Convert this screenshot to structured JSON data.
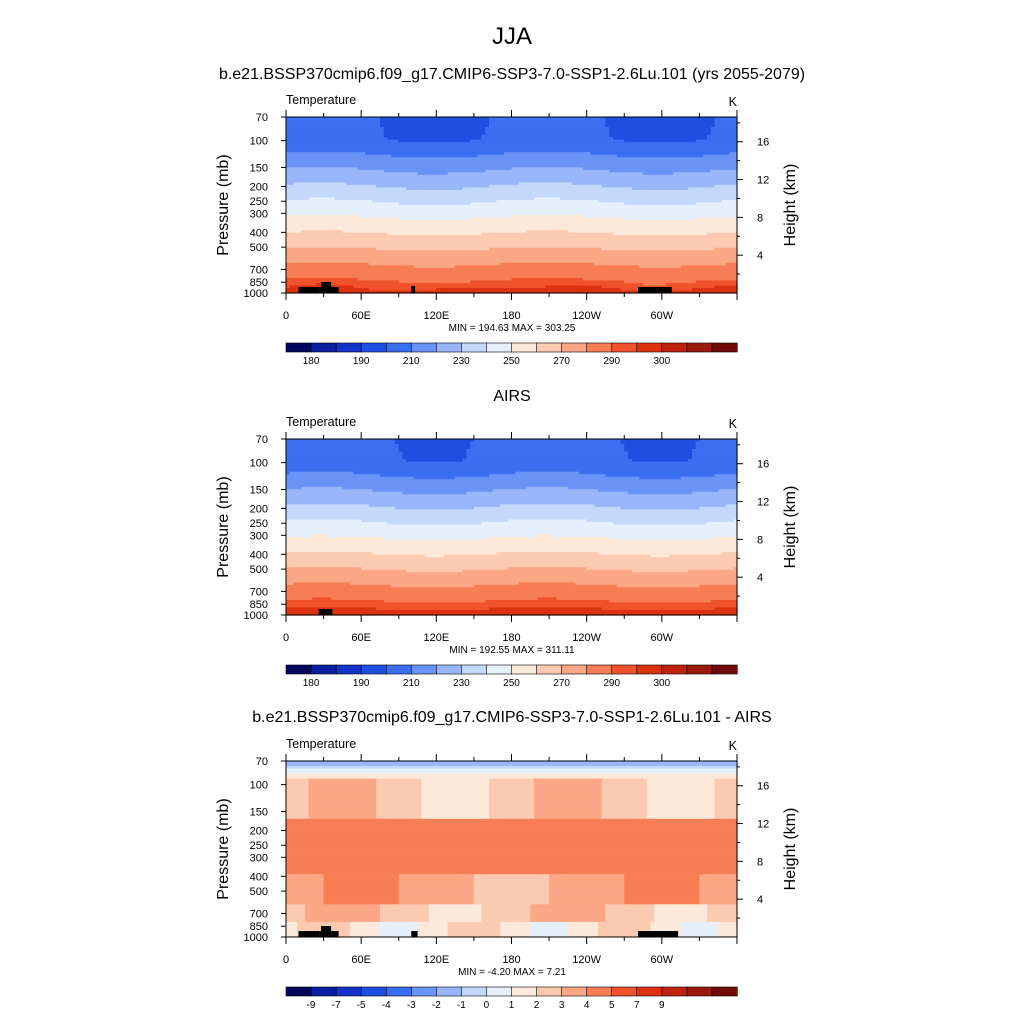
{
  "figure": {
    "title": "JJA"
  },
  "colors": {
    "levels": [
      "#04075e",
      "#0a1fa0",
      "#1233c9",
      "#1f4fe0",
      "#3b6ef0",
      "#6a93f7",
      "#9ab6fa",
      "#c4d8fc",
      "#e6f0fd",
      "#fde9d9",
      "#fccab0",
      "#fba786",
      "#f77d55",
      "#f0522c",
      "#dd3210",
      "#bf230e",
      "#9c1a0d",
      "#700b08"
    ],
    "land_mask": "#000000"
  },
  "chart_data": [
    {
      "type": "heatmap",
      "title": "b.e21.BSSP370cmip6.f09_g17.CMIP6-SSP3-7.0-SSP1-2.6Lu.101 (yrs 2055-2079)",
      "variable_label": "Temperature",
      "units": "K",
      "ylabel": "Pressure (mb)",
      "ylabel_right": "Height (km)",
      "y_ticks": [
        "70",
        "100",
        "150",
        "200",
        "250",
        "300",
        "400",
        "500",
        "700",
        "850",
        "1000"
      ],
      "y_tick_values": [
        70,
        100,
        150,
        200,
        250,
        300,
        400,
        500,
        700,
        850,
        1000
      ],
      "height_ticks": [
        "4",
        "8",
        "12",
        "16"
      ],
      "height_tick_values": [
        4,
        8,
        12,
        16
      ],
      "x_ticks": [
        "0",
        "60E",
        "120E",
        "180",
        "120W",
        "60W"
      ],
      "x_tick_values": [
        0,
        60,
        120,
        180,
        240,
        300
      ],
      "xlim": [
        0,
        360
      ],
      "ylim": [
        70,
        1000
      ],
      "min": "194.63",
      "max": "303.25",
      "minmax_label": "MIN = 194.63  MAX = 303.25",
      "colorbar_labels": [
        "180",
        "190",
        "210",
        "230",
        "250",
        "270",
        "290",
        "300"
      ],
      "colorbar_label_edges": [
        1,
        3,
        5,
        7,
        9,
        11,
        13,
        15
      ],
      "pattern": "temperature",
      "land": [
        [
          10,
          27
        ],
        [
          27,
          33
        ],
        [
          33,
          42
        ],
        [
          100,
          103
        ],
        [
          281,
          308
        ]
      ]
    },
    {
      "type": "heatmap",
      "title": "AIRS",
      "variable_label": "Temperature",
      "units": "K",
      "ylabel": "Pressure (mb)",
      "ylabel_right": "Height (km)",
      "y_ticks": [
        "70",
        "100",
        "150",
        "200",
        "250",
        "300",
        "400",
        "500",
        "700",
        "850",
        "1000"
      ],
      "y_tick_values": [
        70,
        100,
        150,
        200,
        250,
        300,
        400,
        500,
        700,
        850,
        1000
      ],
      "height_ticks": [
        "4",
        "8",
        "12",
        "16"
      ],
      "height_tick_values": [
        4,
        8,
        12,
        16
      ],
      "x_ticks": [
        "0",
        "60E",
        "120E",
        "180",
        "120W",
        "60W"
      ],
      "x_tick_values": [
        0,
        60,
        120,
        180,
        240,
        300
      ],
      "xlim": [
        0,
        360
      ],
      "ylim": [
        70,
        1000
      ],
      "min": "192.55",
      "max": "311.11",
      "minmax_label": "MIN = 192.55  MAX = 311.11",
      "colorbar_labels": [
        "180",
        "190",
        "210",
        "230",
        "250",
        "270",
        "290",
        "300"
      ],
      "colorbar_label_edges": [
        1,
        3,
        5,
        7,
        9,
        11,
        13,
        15
      ],
      "pattern": "temperature_obs",
      "land": [
        [
          26,
          37
        ]
      ]
    },
    {
      "type": "heatmap",
      "title": "b.e21.BSSP370cmip6.f09_g17.CMIP6-SSP3-7.0-SSP1-2.6Lu.101 - AIRS",
      "variable_label": "Temperature",
      "units": "K",
      "ylabel": "Pressure (mb)",
      "ylabel_right": "Height (km)",
      "y_ticks": [
        "70",
        "100",
        "150",
        "200",
        "250",
        "300",
        "400",
        "500",
        "700",
        "850",
        "1000"
      ],
      "y_tick_values": [
        70,
        100,
        150,
        200,
        250,
        300,
        400,
        500,
        700,
        850,
        1000
      ],
      "height_ticks": [
        "4",
        "8",
        "12",
        "16"
      ],
      "height_tick_values": [
        4,
        8,
        12,
        16
      ],
      "x_ticks": [
        "0",
        "60E",
        "120E",
        "180",
        "120W",
        "60W"
      ],
      "x_tick_values": [
        0,
        60,
        120,
        180,
        240,
        300
      ],
      "xlim": [
        0,
        360
      ],
      "ylim": [
        70,
        1000
      ],
      "min": "-4.20",
      "max": "7.21",
      "minmax_label": "MIN =  -4.20  MAX =   7.21",
      "colorbar_labels": [
        "-9",
        "-7",
        "-5",
        "-4",
        "-3",
        "-2",
        "-1",
        "0",
        "1",
        "2",
        "3",
        "4",
        "5",
        "7",
        "9"
      ],
      "colorbar_label_edges": [
        1,
        2,
        3,
        4,
        5,
        6,
        7,
        8,
        9,
        10,
        11,
        12,
        13,
        14,
        15
      ],
      "pattern": "difference",
      "land": [
        [
          10,
          27
        ],
        [
          27,
          36
        ],
        [
          36,
          42
        ],
        [
          100,
          105
        ],
        [
          281,
          313
        ]
      ]
    }
  ]
}
